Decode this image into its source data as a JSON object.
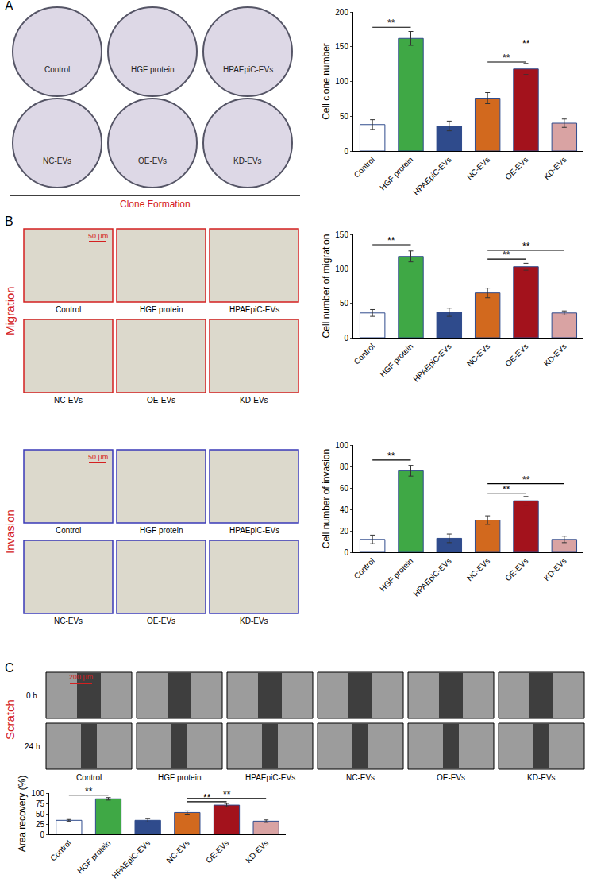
{
  "chart_data": [
    {
      "type": "bar",
      "y_label": "Cell clone number",
      "categories": [
        "Control",
        "HGF protein",
        "HPAEpiC-EVs",
        "NC-EVs",
        "OE-EVs",
        "KD-EVs"
      ],
      "values": [
        38,
        162,
        36,
        76,
        118,
        40
      ],
      "errors": [
        7,
        10,
        7,
        8,
        8,
        6
      ],
      "colors": [
        "#ffffff",
        "#3fa845",
        "#2f4b8c",
        "#d2691e",
        "#a3121c",
        "#d9a3a3"
      ],
      "ylim": [
        0,
        200
      ],
      "yticks": [
        0,
        50,
        100,
        150,
        200
      ],
      "significance": [
        {
          "from": 0,
          "to": 1,
          "y": 178,
          "label": "**"
        },
        {
          "from": 3,
          "to": 4,
          "y": 128,
          "label": "**"
        },
        {
          "from": 3,
          "to": 5,
          "y": 148,
          "label": "**"
        }
      ]
    },
    {
      "type": "bar",
      "y_label": "Cell number of migration",
      "categories": [
        "Control",
        "HGF protein",
        "HPAEpiC-EVs",
        "NC-EVs",
        "OE-EVs",
        "KD-EVs"
      ],
      "values": [
        36,
        118,
        37,
        65,
        103,
        36
      ],
      "errors": [
        5,
        8,
        6,
        7,
        5,
        3
      ],
      "colors": [
        "#ffffff",
        "#3fa845",
        "#2f4b8c",
        "#d2691e",
        "#a3121c",
        "#d9a3a3"
      ],
      "ylim": [
        0,
        150
      ],
      "yticks": [
        0,
        50,
        100,
        150
      ],
      "significance": [
        {
          "from": 0,
          "to": 1,
          "y": 135,
          "label": "**"
        },
        {
          "from": 3,
          "to": 4,
          "y": 114,
          "label": "**"
        },
        {
          "from": 3,
          "to": 5,
          "y": 127,
          "label": "**"
        }
      ]
    },
    {
      "type": "bar",
      "y_label": "Cell number of invasion",
      "categories": [
        "Control",
        "HGF protein",
        "HPAEpiC-EVs",
        "NC-EVs",
        "OE-EVs",
        "KD-EVs"
      ],
      "values": [
        12,
        76,
        13,
        30,
        48,
        12
      ],
      "errors": [
        4,
        5,
        4,
        4,
        4,
        3
      ],
      "colors": [
        "#ffffff",
        "#3fa845",
        "#2f4b8c",
        "#d2691e",
        "#a3121c",
        "#d9a3a3"
      ],
      "ylim": [
        0,
        100
      ],
      "yticks": [
        0,
        20,
        40,
        60,
        80,
        100
      ],
      "significance": [
        {
          "from": 0,
          "to": 1,
          "y": 86,
          "label": "**"
        },
        {
          "from": 3,
          "to": 4,
          "y": 55,
          "label": "**"
        },
        {
          "from": 3,
          "to": 5,
          "y": 64,
          "label": "**"
        }
      ]
    },
    {
      "type": "bar",
      "y_label": "Area recovery (%)",
      "categories": [
        "Control",
        "HGF protein",
        "HPAEpiC-EVs",
        "NC-EVs",
        "OE-EVs",
        "KD-EVs"
      ],
      "values": [
        34,
        86,
        34,
        53,
        71,
        32
      ],
      "errors": [
        2,
        3,
        4,
        4,
        4,
        3
      ],
      "colors": [
        "#ffffff",
        "#3fa845",
        "#2f4b8c",
        "#d2691e",
        "#a3121c",
        "#d9a3a3"
      ],
      "ylim": [
        0,
        100
      ],
      "yticks": [
        0,
        25,
        50,
        75,
        100
      ],
      "significance": [
        {
          "from": 0,
          "to": 1,
          "y": 95,
          "label": "**"
        },
        {
          "from": 3,
          "to": 4,
          "y": 79,
          "label": "**"
        },
        {
          "from": 3,
          "to": 5,
          "y": 87,
          "label": "**"
        }
      ]
    }
  ],
  "images": {
    "A": {
      "letter": "A",
      "title": "Clone Formation",
      "labels": [
        "Control",
        "HGF protein",
        "HPAEpiC-EVs",
        "NC-EVs",
        "OE-EVs",
        "KD-EVs"
      ]
    },
    "B": {
      "letter": "B",
      "rows": [
        {
          "title": "Migration",
          "scale_bar": "50 μm",
          "labels": [
            "Control",
            "HGF protein",
            "HPAEpiC-EVs",
            "NC-EVs",
            "OE-EVs",
            "KD-EVs"
          ]
        },
        {
          "title": "Invasion",
          "scale_bar": "50 μm",
          "labels": [
            "Control",
            "HGF protein",
            "HPAEpiC-EVs",
            "NC-EVs",
            "OE-EVs",
            "KD-EVs"
          ]
        }
      ]
    },
    "C": {
      "letter": "C",
      "title": "Scratch",
      "times": [
        "0 h",
        "24 h"
      ],
      "scale_bar": "200 μm",
      "labels": [
        "Control",
        "HGF protein",
        "HPAEpiC-EVs",
        "NC-EVs",
        "OE-EVs",
        "KD-EVs"
      ]
    }
  }
}
